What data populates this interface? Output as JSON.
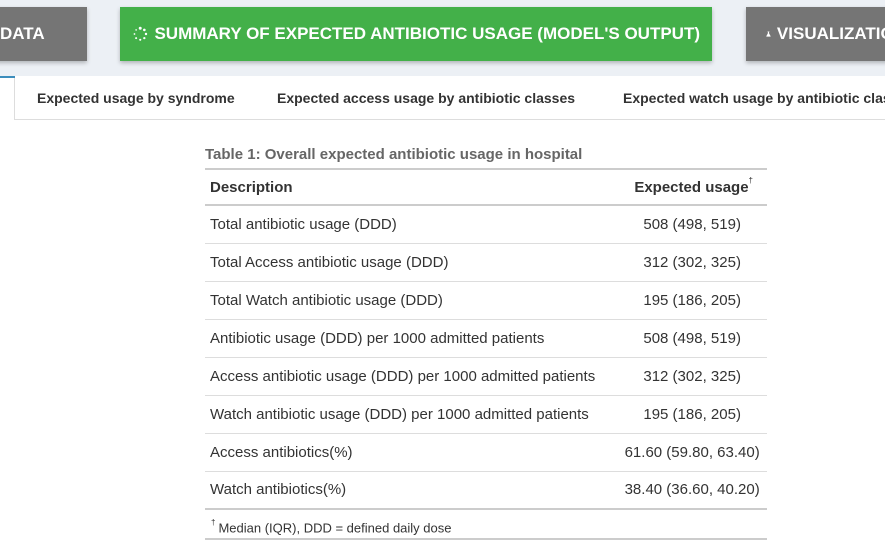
{
  "nav": {
    "data_label": "DATA",
    "summary_label": "SUMMARY OF EXPECTED ANTIBIOTIC USAGE (MODEL'S OUTPUT)",
    "viz_label": "VISUALIZATION"
  },
  "tabs": [
    {
      "label": "Expected usage by syndrome"
    },
    {
      "label": "Expected access usage by antibiotic classes"
    },
    {
      "label": "Expected watch usage by antibiotic classes"
    }
  ],
  "table": {
    "caption": "Table 1: Overall expected antibiotic usage in hospital",
    "headers": {
      "description": "Description",
      "usage": "Expected usage",
      "usage_marker": "†"
    },
    "rows": [
      {
        "description": "Total antibiotic usage (DDD)",
        "value": "508 (498, 519)"
      },
      {
        "description": "Total Access antibiotic usage (DDD)",
        "value": "312 (302, 325)"
      },
      {
        "description": "Total Watch antibiotic usage (DDD)",
        "value": "195 (186, 205)"
      },
      {
        "description": "Antibiotic usage (DDD) per 1000 admitted patients",
        "value": "508 (498, 519)"
      },
      {
        "description": "Access antibiotic usage (DDD) per 1000 admitted patients",
        "value": "312 (302, 325)"
      },
      {
        "description": "Watch antibiotic usage (DDD) per 1000 admitted patients",
        "value": "195 (186, 205)"
      },
      {
        "description": "Access antibiotics(%)",
        "value": "61.60 (59.80, 63.40)"
      },
      {
        "description": "Watch antibiotics(%)",
        "value": "38.40 (36.60, 40.20)"
      }
    ],
    "footnote_marker": "†",
    "footnote": "Median (IQR), DDD = defined daily dose"
  },
  "colors": {
    "active_button": "#43b049",
    "inactive_button": "#757575",
    "tab_accent": "#3c8dbc"
  },
  "icons": {
    "summary": "spinner-icon",
    "visualization": "flask-icon"
  }
}
